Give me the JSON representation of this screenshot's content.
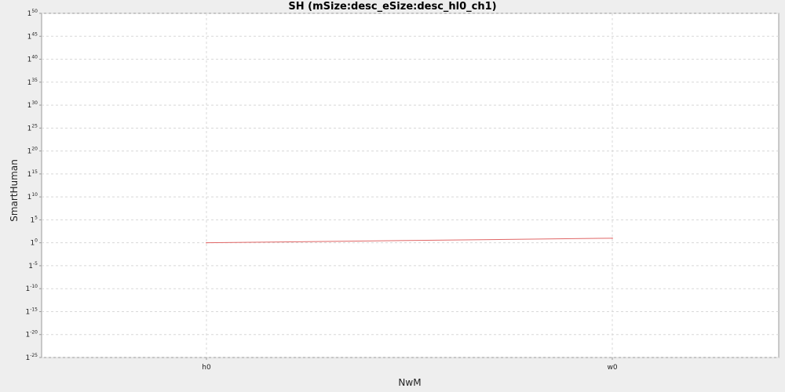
{
  "chart_data": {
    "type": "line",
    "title": "SH (mSize:desc_eSize:desc_hl0_ch1)",
    "xlabel": "NwM",
    "ylabel": "SmartHuman",
    "categories": [
      "h0",
      "w0"
    ],
    "y_ticks": [
      {
        "base": "1",
        "exp": "50"
      },
      {
        "base": "1",
        "exp": "45"
      },
      {
        "base": "1",
        "exp": "40"
      },
      {
        "base": "1",
        "exp": "35"
      },
      {
        "base": "1",
        "exp": "30"
      },
      {
        "base": "1",
        "exp": "25"
      },
      {
        "base": "1",
        "exp": "20"
      },
      {
        "base": "1",
        "exp": "15"
      },
      {
        "base": "1",
        "exp": "10"
      },
      {
        "base": "1",
        "exp": "5"
      },
      {
        "base": "1",
        "exp": "0"
      },
      {
        "base": "1",
        "exp": "-5"
      },
      {
        "base": "1",
        "exp": "-10"
      },
      {
        "base": "1",
        "exp": "-15"
      },
      {
        "base": "1",
        "exp": "-20"
      },
      {
        "base": "1",
        "exp": "-25"
      }
    ],
    "ylim_exponent": [
      -25,
      50
    ],
    "series": [
      {
        "values_exponent": [
          0,
          1
        ],
        "color": "#e06666"
      }
    ],
    "grid": true,
    "colors": {
      "background": "#eeeeee",
      "plot_background": "#ffffff",
      "line": "#e06666",
      "grid": "#d8d8d8"
    }
  }
}
